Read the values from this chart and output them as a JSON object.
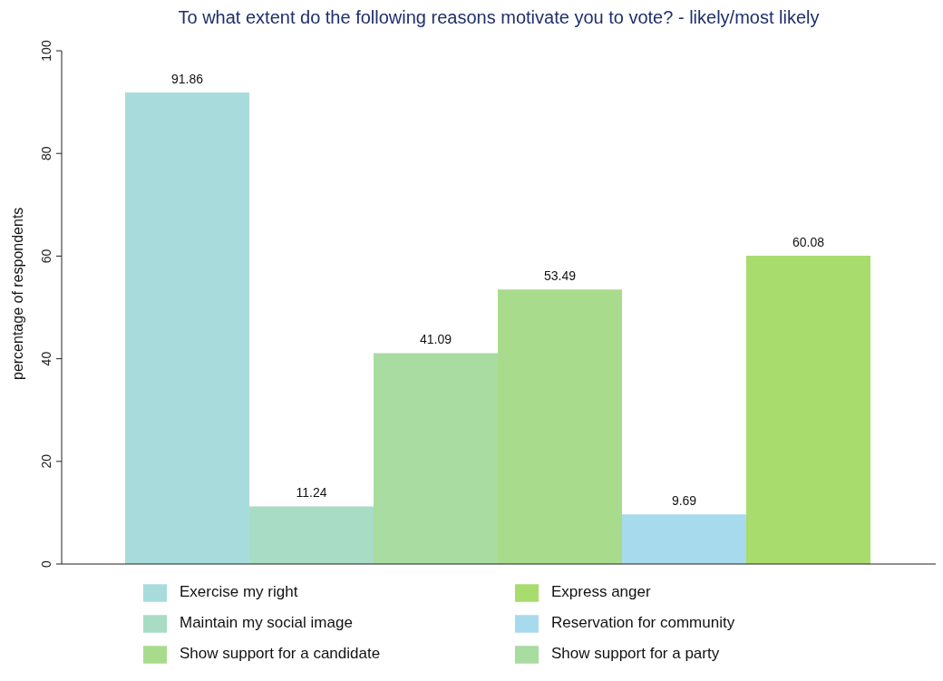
{
  "chart_data": {
    "type": "bar",
    "title": "To what extent do the following reasons motivate you to vote? - likely/most likely",
    "ylabel": "percentage of respondents",
    "categories": [
      null
    ],
    "series": [
      {
        "name": "Exercise my right",
        "color": "#a8dcdc",
        "values": [
          91.86
        ]
      },
      {
        "name": "Maintain my social image",
        "color": "#a8dcc4",
        "values": [
          11.24
        ]
      },
      {
        "name": "Show support for a party",
        "color": "#a8dca0",
        "values": [
          41.09
        ]
      },
      {
        "name": "Show support for a candidate",
        "color": "#a8dc8c",
        "values": [
          53.49
        ]
      },
      {
        "name": "Reservation for  community",
        "color": "#a8daee",
        "values": [
          9.69
        ]
      },
      {
        "name": "Express anger",
        "color": "#a8dc6c",
        "values": [
          60.08
        ]
      }
    ],
    "ylim": [
      0,
      100
    ],
    "yticks": [
      0,
      20,
      40,
      60,
      80,
      100
    ],
    "data_labels": true,
    "grid": false,
    "legend": "bottom"
  }
}
